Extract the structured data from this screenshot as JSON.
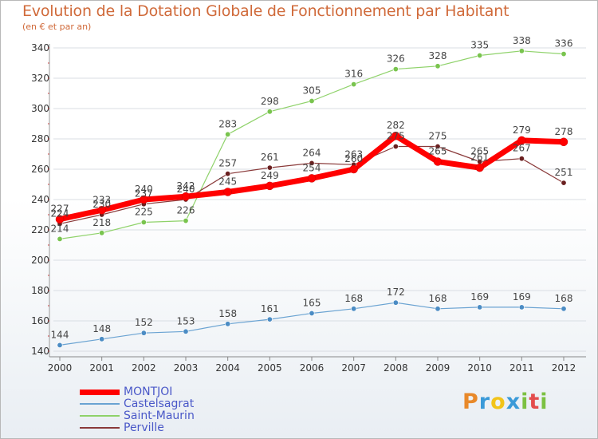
{
  "header": {
    "title": "Evolution de la Dotation Globale de Fonctionnement par Habitant",
    "subtitle": "(en € et par an)"
  },
  "logo": {
    "letters": [
      "P",
      "r",
      "o",
      "x",
      "i",
      "t",
      "i"
    ],
    "colors": [
      "#e8892a",
      "#3a9ad8",
      "#f2c41a",
      "#3a9ad8",
      "#7cc142",
      "#e34d4d",
      "#7cc142"
    ]
  },
  "chart_data": {
    "type": "line",
    "title": "Evolution de la Dotation Globale de Fonctionnement par Habitant",
    "subtitle": "(en € et par an)",
    "xlabel": "",
    "ylabel": "",
    "categories": [
      "2000",
      "2001",
      "2002",
      "2003",
      "2004",
      "2005",
      "2006",
      "2007",
      "2008",
      "2009",
      "2010",
      "2011",
      "2012"
    ],
    "ylim": [
      140,
      340
    ],
    "yticks": [
      140,
      160,
      180,
      200,
      220,
      240,
      260,
      280,
      300,
      320,
      340
    ],
    "grid": true,
    "series": [
      {
        "name": "Saint-Maurin",
        "color": "#8fd26a",
        "marker": "#79c44e",
        "width": 1.2,
        "values": [
          214,
          218,
          225,
          226,
          283,
          298,
          305,
          316,
          326,
          328,
          335,
          338,
          336
        ]
      },
      {
        "name": "Castelsagrat",
        "color": "#6aa3d2",
        "marker": "#4b8cc4",
        "width": 1.2,
        "values": [
          144,
          148,
          152,
          153,
          158,
          161,
          165,
          168,
          172,
          168,
          169,
          169,
          168
        ]
      },
      {
        "name": "Perville",
        "color": "#8a3a3a",
        "marker": "#6a2020",
        "width": 1.2,
        "values": [
          224,
          230,
          237,
          240,
          257,
          261,
          264,
          263,
          275,
          275,
          265,
          267,
          251
        ]
      },
      {
        "name": "MONTJOI",
        "color": "#ff0000",
        "marker": "#ff0000",
        "width": 7,
        "values": [
          227,
          233,
          240,
          242,
          245,
          249,
          254,
          260,
          282,
          265,
          261,
          279,
          278
        ]
      }
    ],
    "legend_order": [
      "MONTJOI",
      "Castelsagrat",
      "Saint-Maurin",
      "Perville"
    ],
    "legend_position": "bottom-left"
  }
}
